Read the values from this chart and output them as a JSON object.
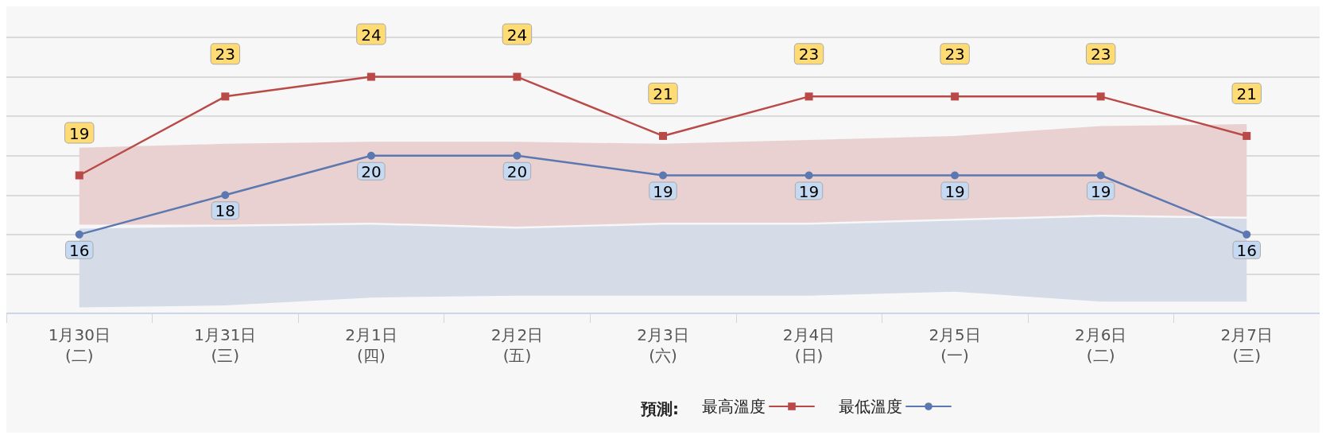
{
  "chart_data": {
    "type": "line",
    "legend_title": "預測:",
    "categories": [
      "1月30日\n(二)",
      "1月31日\n(三)",
      "2月1日\n(四)",
      "2月2日\n(五)",
      "2月3日\n(六)",
      "2月4日\n(日)",
      "2月5日\n(一)",
      "2月6日\n(二)",
      "2月7日\n(三)"
    ],
    "series": [
      {
        "name": "最高溫度",
        "color": "#b94a48",
        "marker": "square",
        "values": [
          19,
          23,
          24,
          24,
          21,
          23,
          23,
          23,
          21
        ],
        "lower": [
          16.5,
          16.5,
          16.6,
          16.4,
          16.6,
          16.6,
          16.8,
          17.0,
          16.9
        ],
        "upper": [
          20.4,
          20.6,
          20.7,
          20.7,
          20.6,
          20.8,
          21.0,
          21.5,
          21.6
        ]
      },
      {
        "name": "最低溫度",
        "color": "#5b78b0",
        "marker": "circle",
        "values": [
          16,
          18,
          20,
          20,
          19,
          19,
          19,
          19,
          16
        ],
        "lower": [
          12.3,
          12.4,
          12.8,
          12.9,
          12.9,
          12.9,
          13.1,
          12.6,
          12.6
        ],
        "upper": [
          16.3,
          16.4,
          16.5,
          16.3,
          16.5,
          16.5,
          16.7,
          16.9,
          16.8
        ]
      }
    ],
    "ylim": [
      12,
      26
    ],
    "yticks": [
      {
        "value": 12,
        "label": null
      },
      {
        "value": 14,
        "label": null
      },
      {
        "value": 16,
        "label": null
      },
      {
        "value": 18,
        "label": null
      },
      {
        "value": 20,
        "label": null
      },
      {
        "value": 22,
        "label": null
      },
      {
        "value": 24,
        "label": null
      },
      {
        "value": 26,
        "label": null
      }
    ],
    "tick_labels": "x",
    "grid": "y",
    "legend": "bottom",
    "data_labels": true,
    "line_style": "solid"
  }
}
